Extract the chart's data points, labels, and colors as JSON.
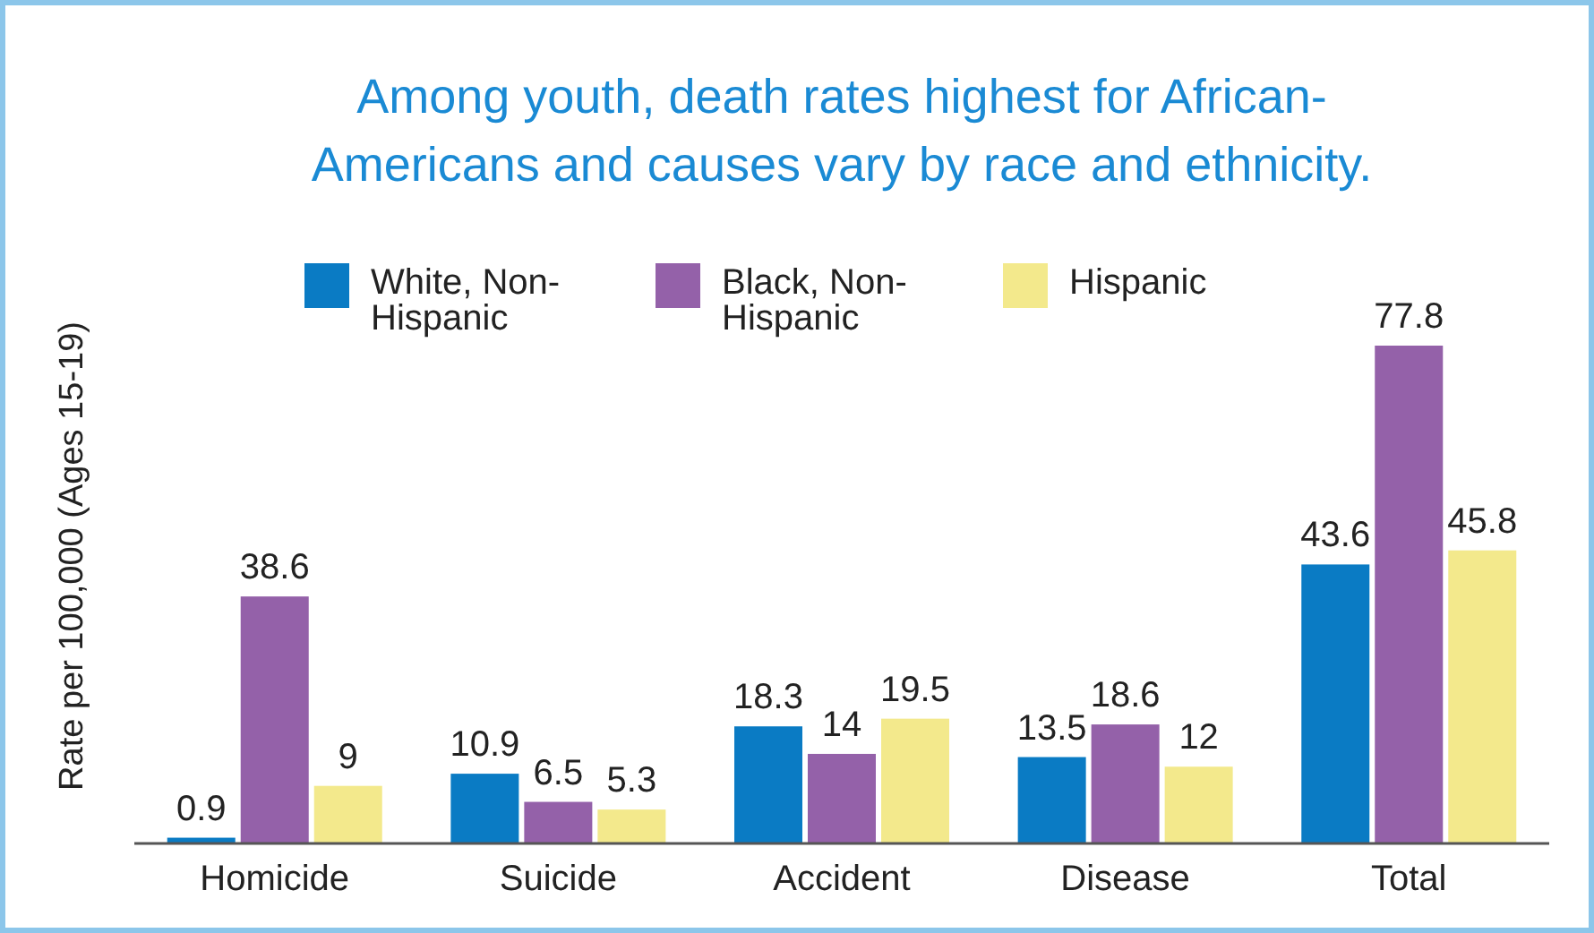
{
  "chart_data": {
    "type": "bar",
    "title": "Among youth, death rates highest for African-Americans and causes vary by race and ethnicity.",
    "ylabel": "Rate per 100,000 (Ages 15-19)",
    "categories": [
      "Homicide",
      "Suicide",
      "Accident",
      "Disease",
      "Total"
    ],
    "series": [
      {
        "name": "White, Non-Hispanic",
        "color": "#0a7bc4",
        "values": [
          0.9,
          10.9,
          18.3,
          13.5,
          43.6
        ]
      },
      {
        "name": "Black, Non-Hispanic",
        "color": "#9461a9",
        "values": [
          38.6,
          6.5,
          14,
          18.6,
          77.8
        ]
      },
      {
        "name": "Hispanic",
        "color": "#f3e98c",
        "values": [
          9,
          5.3,
          19.5,
          12,
          45.8
        ]
      }
    ],
    "data_labels": true,
    "legend": "top"
  }
}
